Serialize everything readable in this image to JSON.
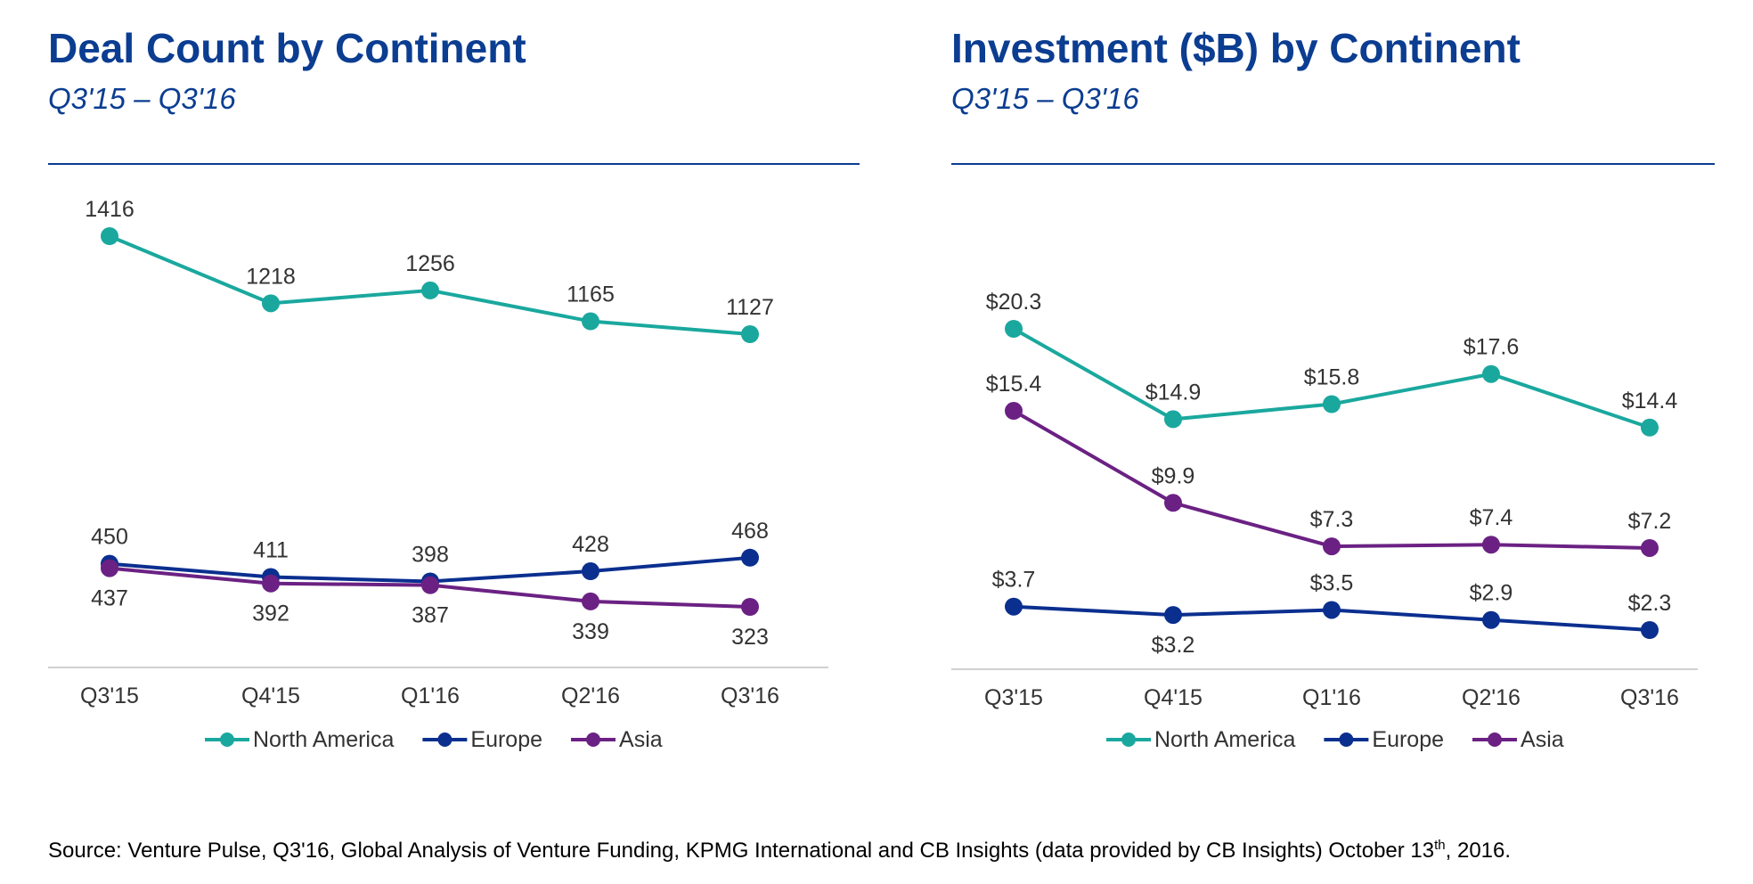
{
  "chart_data": [
    {
      "type": "line",
      "title": "Deal Count by Continent",
      "subtitle": "Q3'15 – Q3'16",
      "categories": [
        "Q3'15",
        "Q4'15",
        "Q1'16",
        "Q2'16",
        "Q3'16"
      ],
      "series": [
        {
          "name": "North America",
          "color": "#1aa89e",
          "values": [
            1416,
            1218,
            1256,
            1165,
            1127
          ]
        },
        {
          "name": "Europe",
          "color": "#0b2f8f",
          "values": [
            450,
            411,
            398,
            428,
            468
          ]
        },
        {
          "name": "Asia",
          "color": "#6b2183",
          "values": [
            437,
            392,
            387,
            339,
            323
          ]
        }
      ]
    },
    {
      "type": "line",
      "title": "Investment ($B) by Continent",
      "subtitle": "Q3'15 – Q3'16",
      "categories": [
        "Q3'15",
        "Q4'15",
        "Q1'16",
        "Q2'16",
        "Q3'16"
      ],
      "series": [
        {
          "name": "North America",
          "color": "#1aa89e",
          "values": [
            20.3,
            14.9,
            15.8,
            17.6,
            14.4
          ],
          "value_labels": [
            "$20.3",
            "$14.9",
            "$15.8",
            "$17.6",
            "$14.4"
          ]
        },
        {
          "name": "Europe",
          "color": "#0b2f8f",
          "values": [
            3.7,
            3.2,
            3.5,
            2.9,
            2.3
          ],
          "value_labels": [
            "$3.7",
            "$3.2",
            "$3.5",
            "$2.9",
            "$2.3"
          ]
        },
        {
          "name": "Asia",
          "color": "#6b2183",
          "values": [
            15.4,
            9.9,
            7.3,
            7.4,
            7.2
          ],
          "value_labels": [
            "$15.4",
            "$9.9",
            "$7.3",
            "$7.4",
            "$7.2"
          ]
        }
      ]
    }
  ],
  "source": {
    "text": "Source: Venture Pulse, Q3'16, Global Analysis of Venture Funding, KPMG International and CB Insights (data provided by CB Insights) October 13",
    "superscript": "th",
    "suffix": ", 2016."
  }
}
